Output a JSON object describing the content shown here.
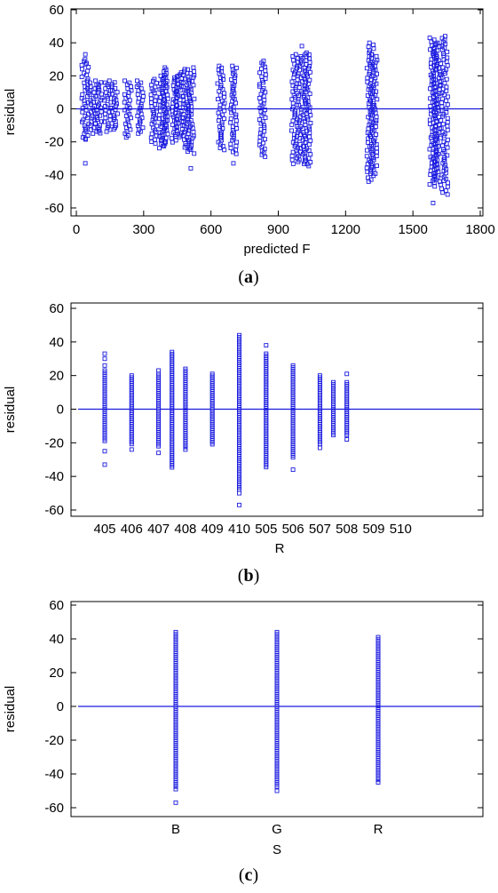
{
  "chart_data": [
    {
      "type": "scatter",
      "caption": "a",
      "xlabel": "predicted F",
      "ylabel": "residual",
      "xlim": [
        -100,
        1800
      ],
      "ylim": [
        -65,
        62
      ],
      "xticks": [
        0,
        300,
        600,
        900,
        1200,
        1500,
        1800
      ],
      "yticks": [
        -60,
        -40,
        -20,
        0,
        20,
        40,
        60
      ],
      "reference_line": 0,
      "grid": false,
      "marker": "open-square",
      "color": "#1a1adf",
      "clusters": [
        {
          "x": 40,
          "ymin": -19,
          "ymax": 30,
          "outliers": [
            33,
            -33,
            27,
            -18
          ]
        },
        {
          "x": 75,
          "ymin": -16,
          "ymax": 17,
          "outliers": []
        },
        {
          "x": 100,
          "ymin": -15,
          "ymax": 16,
          "outliers": []
        },
        {
          "x": 140,
          "ymin": -14,
          "ymax": 17,
          "outliers": []
        },
        {
          "x": 170,
          "ymin": -13,
          "ymax": 16,
          "outliers": []
        },
        {
          "x": 230,
          "ymin": -18,
          "ymax": 17,
          "outliers": []
        },
        {
          "x": 285,
          "ymin": -15,
          "ymax": 17,
          "outliers": []
        },
        {
          "x": 345,
          "ymin": -22,
          "ymax": 18,
          "outliers": []
        },
        {
          "x": 385,
          "ymin": -24,
          "ymax": 20,
          "outliers": []
        },
        {
          "x": 395,
          "ymin": -23,
          "ymax": 25,
          "outliers": []
        },
        {
          "x": 440,
          "ymin": -21,
          "ymax": 20,
          "outliers": []
        },
        {
          "x": 460,
          "ymin": -18,
          "ymax": 22,
          "outliers": []
        },
        {
          "x": 490,
          "ymin": -25,
          "ymax": 24,
          "outliers": []
        },
        {
          "x": 510,
          "ymin": -28,
          "ymax": 25,
          "outliers": [
            -36
          ]
        },
        {
          "x": 645,
          "ymin": -25,
          "ymax": 26,
          "outliers": []
        },
        {
          "x": 700,
          "ymin": -28,
          "ymax": 26,
          "outliers": [
            -33
          ]
        },
        {
          "x": 830,
          "ymin": -30,
          "ymax": 29,
          "outliers": []
        },
        {
          "x": 975,
          "ymin": -34,
          "ymax": 33,
          "outliers": []
        },
        {
          "x": 1005,
          "ymin": -34,
          "ymax": 33,
          "outliers": [
            38
          ]
        },
        {
          "x": 1030,
          "ymin": -35,
          "ymax": 34,
          "outliers": []
        },
        {
          "x": 1310,
          "ymin": -45,
          "ymax": 40,
          "outliers": []
        },
        {
          "x": 1325,
          "ymin": -40,
          "ymax": 33,
          "outliers": []
        },
        {
          "x": 1590,
          "ymin": -48,
          "ymax": 43,
          "outliers": [
            -57
          ]
        },
        {
          "x": 1605,
          "ymin": -45,
          "ymax": 40,
          "outliers": []
        },
        {
          "x": 1640,
          "ymin": -52,
          "ymax": 44,
          "outliers": []
        }
      ]
    },
    {
      "type": "scatter",
      "caption": "b",
      "xlabel": "R",
      "ylabel": "residual",
      "ylim": [
        -65,
        62
      ],
      "categories": [
        "405",
        "406",
        "407",
        "408",
        "409",
        "410",
        "505",
        "506",
        "507",
        "508",
        "509",
        "510"
      ],
      "yticks": [
        -60,
        -40,
        -20,
        0,
        20,
        40,
        60
      ],
      "reference_line": 0,
      "grid": false,
      "marker": "open-square",
      "color": "#1a1adf",
      "clusters": [
        {
          "category": "405",
          "ymin": -20,
          "ymax": 23,
          "outliers": [
            33,
            30,
            26,
            -25,
            -33
          ]
        },
        {
          "category": "406",
          "ymin": -21,
          "ymax": 20,
          "outliers": [
            -24
          ]
        },
        {
          "category": "407",
          "ymin": -23,
          "ymax": 21,
          "outliers": [
            23,
            -26
          ]
        },
        {
          "category": "407",
          "offset": 0.5,
          "ymin": -35,
          "ymax": 34,
          "outliers": []
        },
        {
          "category": "408",
          "ymin": -23,
          "ymax": 24,
          "outliers": [
            -24
          ]
        },
        {
          "category": "409",
          "ymin": -21,
          "ymax": 21,
          "outliers": []
        },
        {
          "category": "410",
          "ymin": -48,
          "ymax": 44,
          "outliers": [
            -50,
            -57
          ]
        },
        {
          "category": "505",
          "ymin": -35,
          "ymax": 33,
          "outliers": [
            38
          ]
        },
        {
          "category": "506",
          "ymin": -29,
          "ymax": 26,
          "outliers": [
            -36
          ]
        },
        {
          "category": "507",
          "ymin": -21,
          "ymax": 20,
          "outliers": [
            -23
          ]
        },
        {
          "category": "507",
          "offset": 0.5,
          "ymin": -16,
          "ymax": 16,
          "outliers": []
        },
        {
          "category": "508",
          "ymin": -16,
          "ymax": 16,
          "outliers": [
            21,
            -18
          ]
        }
      ]
    },
    {
      "type": "scatter",
      "caption": "c",
      "xlabel": "S",
      "ylabel": "residual",
      "ylim": [
        -65,
        62
      ],
      "categories": [
        "B",
        "G",
        "R"
      ],
      "yticks": [
        -60,
        -40,
        -20,
        0,
        20,
        40,
        60
      ],
      "reference_line": 0,
      "grid": false,
      "marker": "open-square",
      "color": "#1a1adf",
      "clusters": [
        {
          "category": "B",
          "ymin": -48,
          "ymax": 44,
          "outliers": [
            -57,
            -49
          ]
        },
        {
          "category": "G",
          "ymin": -48,
          "ymax": 44,
          "outliers": [
            -50
          ]
        },
        {
          "category": "R",
          "ymin": -44,
          "ymax": 41,
          "outliers": [
            -45
          ]
        }
      ]
    }
  ]
}
